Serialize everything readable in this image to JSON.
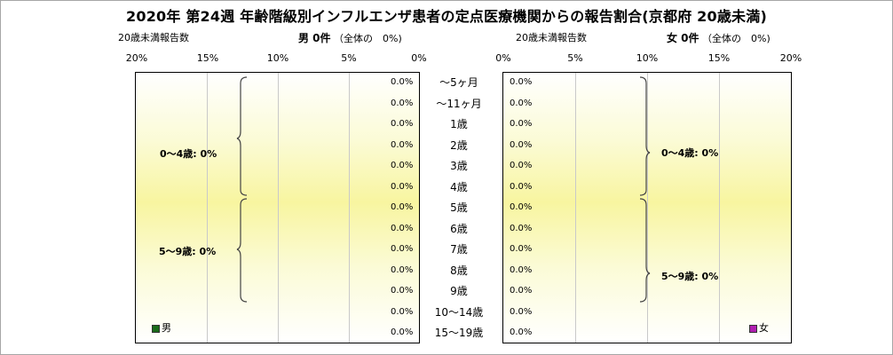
{
  "title": "2020年 第24週 年齢階級別インフルエンザ患者の定点医療機関からの報告割合(京都府 20歳未満)",
  "left_header": {
    "caption": "20歳未満報告数",
    "label": "男 0件",
    "share": "（全体の　0%)"
  },
  "right_header": {
    "caption": "20歳未満報告数",
    "label": "女 0件",
    "share": "（全体の　0%)"
  },
  "left_axis_ticks": [
    "20%",
    "15%",
    "10%",
    "5%",
    "0%"
  ],
  "right_axis_ticks": [
    "0%",
    "5%",
    "10%",
    "15%",
    "20%"
  ],
  "age_groups": [
    "～5ヶ月",
    "～11ヶ月",
    "1歳",
    "2歳",
    "3歳",
    "4歳",
    "5歳",
    "6歳",
    "7歳",
    "8歳",
    "9歳",
    "10～14歳",
    "15～19歳"
  ],
  "male_brace_labels": [
    "0～4歳: 0%",
    "5～9歳: 0%"
  ],
  "female_brace_labels": [
    "0～4歳: 0%",
    "5～9歳: 0%"
  ],
  "legend": {
    "male": "男",
    "female": "女"
  },
  "colors": {
    "male": "#1a6b1a",
    "female": "#b01fb0",
    "gradient": "#f8f5a0"
  },
  "chart_data": {
    "type": "bar",
    "orientation": "horizontal",
    "layout": "population-pyramid",
    "categories": [
      "～5ヶ月",
      "～11ヶ月",
      "1歳",
      "2歳",
      "3歳",
      "4歳",
      "5歳",
      "6歳",
      "7歳",
      "8歳",
      "9歳",
      "10～14歳",
      "15～19歳"
    ],
    "series": [
      {
        "name": "男",
        "values": [
          0,
          0,
          0,
          0,
          0,
          0,
          0,
          0,
          0,
          0,
          0,
          0,
          0
        ],
        "labels": [
          "0.0%",
          "0.0%",
          "0.0%",
          "0.0%",
          "0.0%",
          "0.0%",
          "0.0%",
          "0.0%",
          "0.0%",
          "0.0%",
          "0.0%",
          "0.0%",
          "0.0%"
        ]
      },
      {
        "name": "女",
        "values": [
          0,
          0,
          0,
          0,
          0,
          0,
          0,
          0,
          0,
          0,
          0,
          0,
          0
        ],
        "labels": [
          "0.0%",
          "0.0%",
          "0.0%",
          "0.0%",
          "0.0%",
          "0.0%",
          "0.0%",
          "0.0%",
          "0.0%",
          "0.0%",
          "0.0%",
          "0.0%",
          "0.0%"
        ]
      }
    ],
    "xlim": [
      0,
      20
    ],
    "grid": true
  }
}
